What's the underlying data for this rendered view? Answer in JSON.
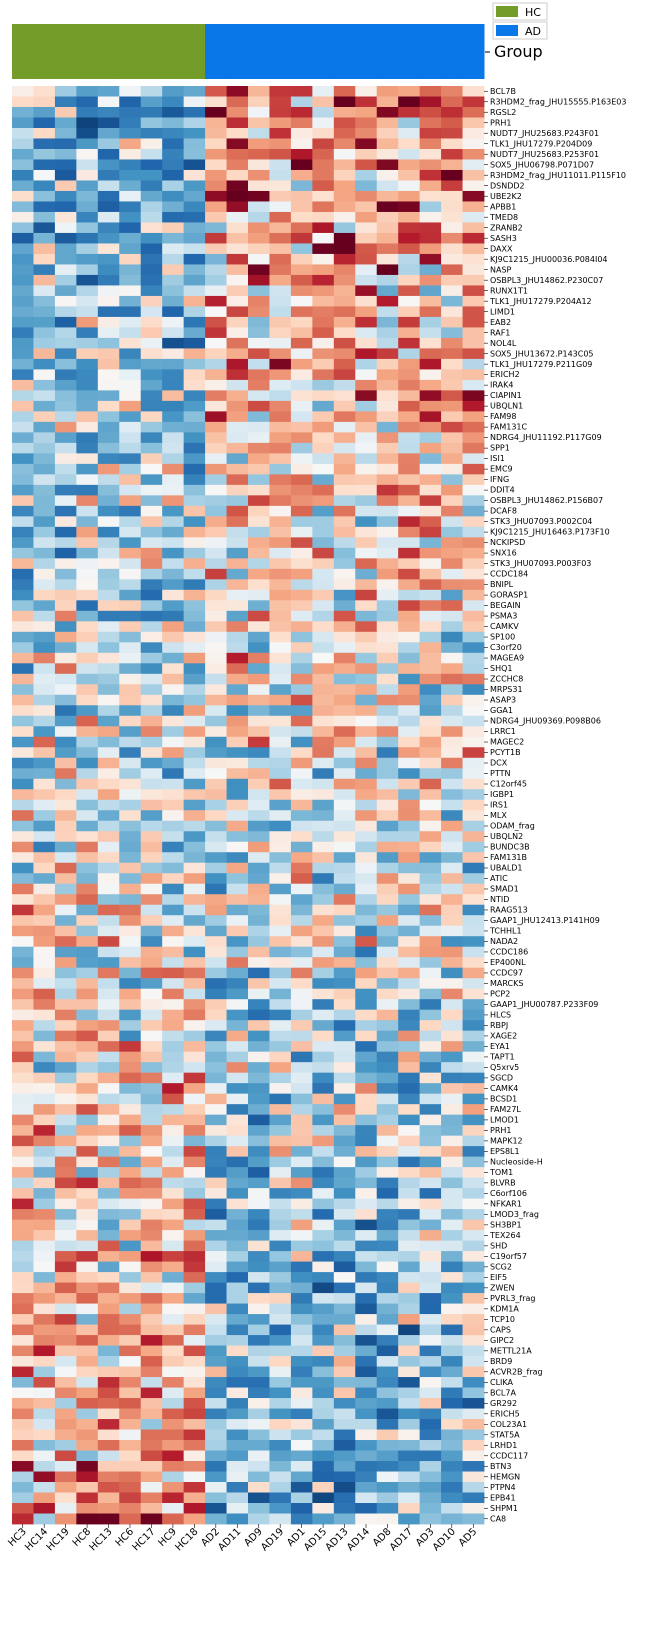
{
  "chart_data": {
    "type": "heatmap",
    "group_label": "Group",
    "legend": [
      {
        "name": "HC",
        "color": "#739d28"
      },
      {
        "name": "AD",
        "color": "#0977e8"
      }
    ],
    "columns": [
      "HC3",
      "HC14",
      "HC19",
      "HC8",
      "HC13",
      "HC6",
      "HC17",
      "HC9",
      "HC18",
      "AD2",
      "AD11",
      "AD9",
      "AD19",
      "AD1",
      "AD15",
      "AD13",
      "AD14",
      "AD8",
      "AD17",
      "AD3",
      "AD10",
      "AD5"
    ],
    "column_groups": [
      "HC",
      "HC",
      "HC",
      "HC",
      "HC",
      "HC",
      "HC",
      "HC",
      "HC",
      "AD",
      "AD",
      "AD",
      "AD",
      "AD",
      "AD",
      "AD",
      "AD",
      "AD",
      "AD",
      "AD",
      "AD",
      "AD"
    ],
    "rows": [
      "BCL7B",
      "R3HDM2_frag_JHU15555.P163E03",
      "RGSL2",
      "PRH1",
      "NUDT7_JHU25683.P243F01",
      "TLK1_JHU17279.P204D09",
      "NUDT7_JHU25683.P253F01",
      "SOX5_JHU06798.P071D07",
      "R3HDM2_frag_JHU11011.P115F10",
      "DSNDD2",
      "UBE2K2",
      "APBB1",
      "TMED8",
      "ZRANB2",
      "SASH3",
      "DAXX",
      "KJ9C1215_JHU00036.P084I04",
      "NASP",
      "OSBPL3_JHU14862.P230C07",
      "RUNX1T1",
      "TLK1_JHU17279.P204A12",
      "LIMD1",
      "EAB2",
      "RAF1",
      "NOL4L",
      "SOX5_JHU13672.P143C05",
      "TLK1_JHU17279.P211G09",
      "ERICH2",
      "IRAK4",
      "CIAPIN1",
      "UBQLN1",
      "FAM98",
      "FAM131C",
      "NDRG4_JHU11192.P117G09",
      "SPP1",
      "ISI1",
      "EMC9",
      "IFNG",
      "DDIT4",
      "OSBPL3_JHU14862.P156B07",
      "DCAF8",
      "STK3_JHU07093.P002C04",
      "KJ9C1215_JHU16463.P173F10",
      "NCKIPSD",
      "SNX16",
      "STK3_JHU07093.P003F03",
      "CCDC184",
      "BNIPL",
      "GORASP1",
      "BEGAIN",
      "PSMA3",
      "CAMKV",
      "SP100",
      "C3orf20",
      "MAGEA9",
      "SHQ1",
      "ZCCHC8",
      "MRPS31",
      "ASAP3",
      "GGA1",
      "NDRG4_JHU09369.P098B06",
      "LRRC1",
      "MAGEC2",
      "PCYT1B",
      "DCX",
      "PTTN",
      "C12orf45",
      "IGBP1",
      "IRS1",
      "MLX",
      "ODAM_frag",
      "UBQLN2",
      "BUNDC3B",
      "FAM131B",
      "UBALD1",
      "ATIC",
      "SMAD1",
      "NTID",
      "RAAG513",
      "GAAP1_JHU12413.P141H09",
      "TCHHL1",
      "NADA2",
      "CCDC186",
      "EP400NL",
      "CCDC97",
      "MARCKS",
      "PCP2",
      "GAAP1_JHU00787.P233F09",
      "HLCS",
      "RBPJ",
      "XAGE2",
      "EYA1",
      "TAPT1",
      "Q5xrv5",
      "SGCD",
      "CAMK4",
      "BCSD1",
      "FAM27L",
      "LMOD1",
      "PRH1",
      "MAPK12",
      "EPS8L1",
      "Nucleoside-H",
      "TOM1",
      "BLVRB",
      "C6orf106",
      "NFKAR1",
      "LMOD3_frag",
      "SH3BP1",
      "TEX264",
      "SHD",
      "C19orf57",
      "SCG2",
      "EIF5",
      "ZWEN",
      "PVRL3_frag",
      "KDM1A",
      "TCP10",
      "CAPS",
      "GIPC2",
      "METTL21A",
      "BRD9",
      "ACVR2B_frag",
      "CLIKA",
      "BCL7A",
      "GR292",
      "ERICH5",
      "COL23A1",
      "STAT5A",
      "LRHD1",
      "CCDC117",
      "BTN3",
      "HEMGN",
      "PTPN4",
      "EPB41",
      "SHPM1",
      "CA8"
    ]
  }
}
